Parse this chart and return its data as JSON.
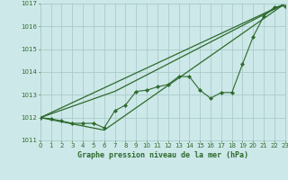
{
  "title": "Graphe pression niveau de la mer (hPa)",
  "bg_color": "#cde8e8",
  "grid_color": "#aacccc",
  "line_color": "#2d6a2d",
  "marker_color": "#2d6a2d",
  "x_min": 0,
  "x_max": 23,
  "y_min": 1011,
  "y_max": 1017,
  "y_ticks": [
    1011,
    1012,
    1013,
    1014,
    1015,
    1016,
    1017
  ],
  "x_ticks": [
    0,
    1,
    2,
    3,
    4,
    5,
    6,
    7,
    8,
    9,
    10,
    11,
    12,
    13,
    14,
    15,
    16,
    17,
    18,
    19,
    20,
    21,
    22,
    23
  ],
  "series1_x": [
    0,
    1,
    2,
    3,
    4,
    5,
    6,
    7,
    8,
    9,
    10,
    11,
    12,
    13,
    14,
    15,
    16,
    17,
    18,
    19,
    20,
    21,
    22,
    23
  ],
  "series1_y": [
    1012.0,
    1011.95,
    1011.85,
    1011.75,
    1011.75,
    1011.75,
    1011.55,
    1012.3,
    1012.55,
    1013.15,
    1013.2,
    1013.35,
    1013.45,
    1013.8,
    1013.8,
    1013.2,
    1012.85,
    1013.1,
    1013.1,
    1014.35,
    1015.55,
    1016.45,
    1016.85,
    1016.9
  ],
  "series2_x": [
    0,
    7,
    23
  ],
  "series2_y": [
    1012.0,
    1013.15,
    1017.0
  ],
  "series3_x": [
    0,
    6,
    23
  ],
  "series3_y": [
    1012.0,
    1011.45,
    1017.0
  ],
  "series4_x": [
    0,
    23
  ],
  "series4_y": [
    1012.0,
    1017.0
  ],
  "xlabel_fontsize": 6.0,
  "tick_fontsize": 5.0
}
